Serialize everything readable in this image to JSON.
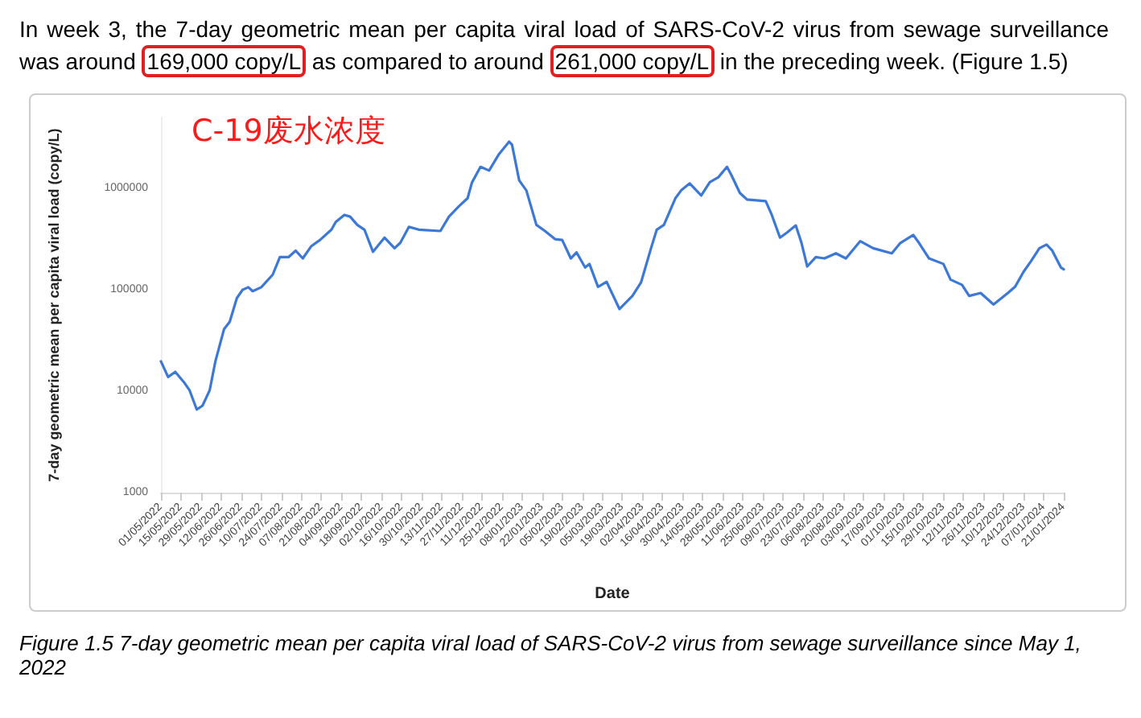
{
  "chart_data": {
    "type": "line",
    "title": "C-19废水浓度",
    "xlabel": "Date",
    "ylabel": "7-day geometric mean per capita viral load (copy/L)",
    "annotations": [
      "In week 3, the 7-day geometric mean per capita viral load of SARS-CoV-2 virus from sewage surveillance was around 169,000 copy/L as compared to around 261,000 copy/L in the preceding week. (Figure 1.5)",
      "Figure 1.5 7-day geometric mean per capita viral load of SARS-CoV-2 virus from sewage surveillance since May 1, 2022"
    ],
    "log": "y",
    "ylim": [
      1000,
      5000000
    ],
    "yticks": [
      1000,
      10000,
      100000,
      1000000
    ],
    "xlim": [
      "2022-05-01",
      "2024-01-21"
    ],
    "xticks": [
      {
        "value": "2022-05-01",
        "label": "01/05/2022"
      },
      {
        "value": "2022-05-15",
        "label": "15/05/2022"
      },
      {
        "value": "2022-05-29",
        "label": "29/05/2022"
      },
      {
        "value": "2022-06-12",
        "label": "12/06/2022"
      },
      {
        "value": "2022-06-26",
        "label": "26/06/2022"
      },
      {
        "value": "2022-07-10",
        "label": "10/07/2022"
      },
      {
        "value": "2022-07-24",
        "label": "24/07/2022"
      },
      {
        "value": "2022-08-07",
        "label": "07/08/2022"
      },
      {
        "value": "2022-08-21",
        "label": "21/08/2022"
      },
      {
        "value": "2022-09-04",
        "label": "04/09/2022"
      },
      {
        "value": "2022-09-18",
        "label": "18/09/2022"
      },
      {
        "value": "2022-10-02",
        "label": "02/10/2022"
      },
      {
        "value": "2022-10-16",
        "label": "16/10/2022"
      },
      {
        "value": "2022-10-30",
        "label": "30/10/2022"
      },
      {
        "value": "2022-11-13",
        "label": "13/11/2022"
      },
      {
        "value": "2022-11-27",
        "label": "27/11/2022"
      },
      {
        "value": "2022-12-11",
        "label": "11/12/2022"
      },
      {
        "value": "2022-12-25",
        "label": "25/12/2022"
      },
      {
        "value": "2023-01-08",
        "label": "08/01/2023"
      },
      {
        "value": "2023-01-22",
        "label": "22/01/2023"
      },
      {
        "value": "2023-02-05",
        "label": "05/02/2023"
      },
      {
        "value": "2023-02-19",
        "label": "19/02/2023"
      },
      {
        "value": "2023-03-05",
        "label": "05/03/2023"
      },
      {
        "value": "2023-03-19",
        "label": "19/03/2023"
      },
      {
        "value": "2023-04-02",
        "label": "02/04/2023"
      },
      {
        "value": "2023-04-16",
        "label": "16/04/2023"
      },
      {
        "value": "2023-04-30",
        "label": "30/04/2023"
      },
      {
        "value": "2023-05-14",
        "label": "14/05/2023"
      },
      {
        "value": "2023-05-28",
        "label": "28/05/2023"
      },
      {
        "value": "2023-06-11",
        "label": "11/06/2023"
      },
      {
        "value": "2023-06-25",
        "label": "25/06/2023"
      },
      {
        "value": "2023-07-09",
        "label": "09/07/2023"
      },
      {
        "value": "2023-07-23",
        "label": "23/07/2023"
      },
      {
        "value": "2023-08-06",
        "label": "06/08/2023"
      },
      {
        "value": "2023-08-20",
        "label": "20/08/2023"
      },
      {
        "value": "2023-09-03",
        "label": "03/09/2023"
      },
      {
        "value": "2023-09-17",
        "label": "17/09/2023"
      },
      {
        "value": "2023-10-01",
        "label": "01/10/2023"
      },
      {
        "value": "2023-10-15",
        "label": "15/10/2023"
      },
      {
        "value": "2023-10-29",
        "label": "29/10/2023"
      },
      {
        "value": "2023-11-12",
        "label": "12/11/2023"
      },
      {
        "value": "2023-11-26",
        "label": "26/11/2023"
      },
      {
        "value": "2023-12-10",
        "label": "10/12/2023"
      },
      {
        "value": "2023-12-24",
        "label": "24/12/2023"
      },
      {
        "value": "2024-01-07",
        "label": "07/01/2024"
      },
      {
        "value": "2024-01-21",
        "label": "21/01/2024"
      }
    ],
    "series": [
      {
        "color": "#3c78d8",
        "x": [
          "2022-05-01",
          "2022-05-06",
          "2022-05-11",
          "2022-05-17",
          "2022-05-21",
          "2022-05-26",
          "2022-05-30",
          "2022-06-04",
          "2022-06-08",
          "2022-06-14",
          "2022-06-18",
          "2022-06-23",
          "2022-06-27",
          "2022-07-01",
          "2022-07-04",
          "2022-07-10",
          "2022-07-18",
          "2022-07-23",
          "2022-07-29",
          "2022-08-03",
          "2022-08-08",
          "2022-08-14",
          "2022-08-20",
          "2022-08-28",
          "2022-08-31",
          "2022-09-06",
          "2022-09-10",
          "2022-09-15",
          "2022-09-20",
          "2022-09-26",
          "2022-10-04",
          "2022-10-11",
          "2022-10-15",
          "2022-10-21",
          "2022-10-28",
          "2022-11-12",
          "2022-11-18",
          "2022-11-25",
          "2022-12-01",
          "2022-12-04",
          "2022-12-10",
          "2022-12-16",
          "2022-12-23",
          "2022-12-30",
          "2023-01-01",
          "2023-01-06",
          "2023-01-11",
          "2023-01-18",
          "2023-01-24",
          "2023-01-31",
          "2023-02-05",
          "2023-02-11",
          "2023-02-15",
          "2023-02-21",
          "2023-02-24",
          "2023-03-02",
          "2023-03-08",
          "2023-03-17",
          "2023-03-26",
          "2023-04-01",
          "2023-04-08",
          "2023-04-12",
          "2023-04-17",
          "2023-04-25",
          "2023-04-29",
          "2023-05-05",
          "2023-05-13",
          "2023-05-19",
          "2023-05-25",
          "2023-05-31",
          "2023-06-03",
          "2023-06-09",
          "2023-06-14",
          "2023-06-27",
          "2023-07-01",
          "2023-07-07",
          "2023-07-12",
          "2023-07-18",
          "2023-07-22",
          "2023-07-26",
          "2023-08-01",
          "2023-08-07",
          "2023-08-15",
          "2023-08-22",
          "2023-09-01",
          "2023-09-10",
          "2023-09-23",
          "2023-09-29",
          "2023-10-08",
          "2023-10-12",
          "2023-10-19",
          "2023-10-29",
          "2023-11-03",
          "2023-11-11",
          "2023-11-16",
          "2023-11-24",
          "2023-12-03",
          "2023-12-13",
          "2023-12-18",
          "2023-12-24",
          "2023-12-29",
          "2024-01-04",
          "2024-01-09",
          "2024-01-13",
          "2024-01-19",
          "2024-01-21"
        ],
        "values": [
          19700,
          13800,
          15500,
          12300,
          10200,
          6600,
          7200,
          10200,
          19700,
          40800,
          48400,
          83000,
          100000,
          106000,
          97000,
          106000,
          141000,
          210000,
          210000,
          243000,
          204000,
          270000,
          310000,
          392000,
          467000,
          548000,
          527000,
          437000,
          392000,
          237000,
          327000,
          257000,
          290000,
          417000,
          392000,
          380000,
          527000,
          668000,
          800000,
          1140000,
          1630000,
          1500000,
          2190000,
          2890000,
          2690000,
          1200000,
          955000,
          437000,
          380000,
          316000,
          310000,
          204000,
          234000,
          166000,
          180000,
          107000,
          120000,
          64600,
          87000,
          118000,
          257000,
          392000,
          437000,
          800000,
          955000,
          1120000,
          851000,
          1150000,
          1290000,
          1630000,
          1360000,
          902000,
          777000,
          750000,
          560000,
          327000,
          368000,
          431000,
          290000,
          170000,
          210000,
          204000,
          229000,
          204000,
          302000,
          257000,
          229000,
          290000,
          347000,
          290000,
          204000,
          180000,
          126000,
          112000,
          87000,
          93000,
          71600,
          93000,
          107000,
          151000,
          190000,
          257000,
          279000,
          243000,
          166000,
          159000
        ]
      }
    ]
  }
}
